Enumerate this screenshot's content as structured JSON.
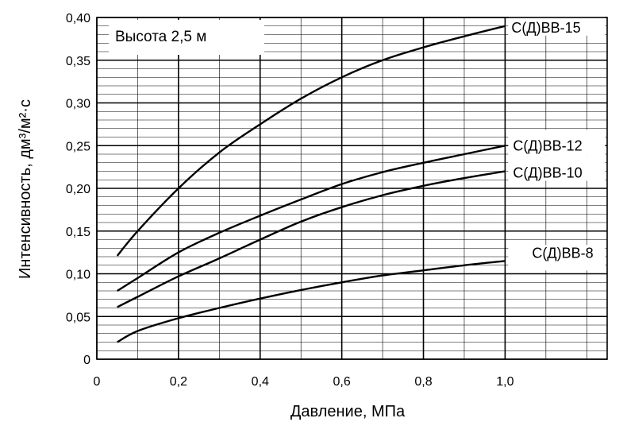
{
  "chart_data": {
    "type": "line",
    "title": "",
    "annotation": "Высота 2,5 м",
    "xlabel": "Давление, МПа",
    "ylabel": "Интенсивность, дм³/м²·с",
    "xlim": [
      0,
      1.25
    ],
    "ylim": [
      0,
      0.4
    ],
    "x_ticks": [
      {
        "value": 0,
        "label": "0"
      },
      {
        "value": 0.2,
        "label": "0,2"
      },
      {
        "value": 0.4,
        "label": "0,4"
      },
      {
        "value": 0.6,
        "label": "0,6"
      },
      {
        "value": 0.8,
        "label": "0,8"
      },
      {
        "value": 1.0,
        "label": "1,0"
      }
    ],
    "y_ticks": [
      {
        "value": 0,
        "label": "0"
      },
      {
        "value": 0.05,
        "label": "0,05"
      },
      {
        "value": 0.1,
        "label": "0,10"
      },
      {
        "value": 0.15,
        "label": "0,15"
      },
      {
        "value": 0.2,
        "label": "0,20"
      },
      {
        "value": 0.25,
        "label": "0,25"
      },
      {
        "value": 0.3,
        "label": "0,30"
      },
      {
        "value": 0.35,
        "label": "0,35"
      },
      {
        "value": 0.4,
        "label": "0,40"
      }
    ],
    "grid": true,
    "minor_grid_x": 0.1,
    "minor_grid_y": 0.01,
    "x": [
      0.05,
      0.1,
      0.2,
      0.3,
      0.4,
      0.5,
      0.6,
      0.7,
      0.8,
      0.9,
      1.0
    ],
    "series": [
      {
        "name": "С(Д)ВВ-15",
        "values": [
          0.121,
          0.15,
          0.2,
          0.242,
          0.275,
          0.305,
          0.33,
          0.35,
          0.365,
          0.378,
          0.39
        ]
      },
      {
        "name": "С(Д)ВВ-12",
        "values": [
          0.08,
          0.095,
          0.125,
          0.148,
          0.168,
          0.187,
          0.205,
          0.219,
          0.23,
          0.24,
          0.25
        ]
      },
      {
        "name": "С(Д)ВВ-10",
        "values": [
          0.061,
          0.073,
          0.097,
          0.118,
          0.14,
          0.161,
          0.178,
          0.192,
          0.203,
          0.212,
          0.22
        ]
      },
      {
        "name": "С(Д)ВВ-8",
        "values": [
          0.02,
          0.033,
          0.048,
          0.06,
          0.071,
          0.081,
          0.09,
          0.098,
          0.104,
          0.11,
          0.115
        ]
      }
    ],
    "line_color": "#000000"
  }
}
